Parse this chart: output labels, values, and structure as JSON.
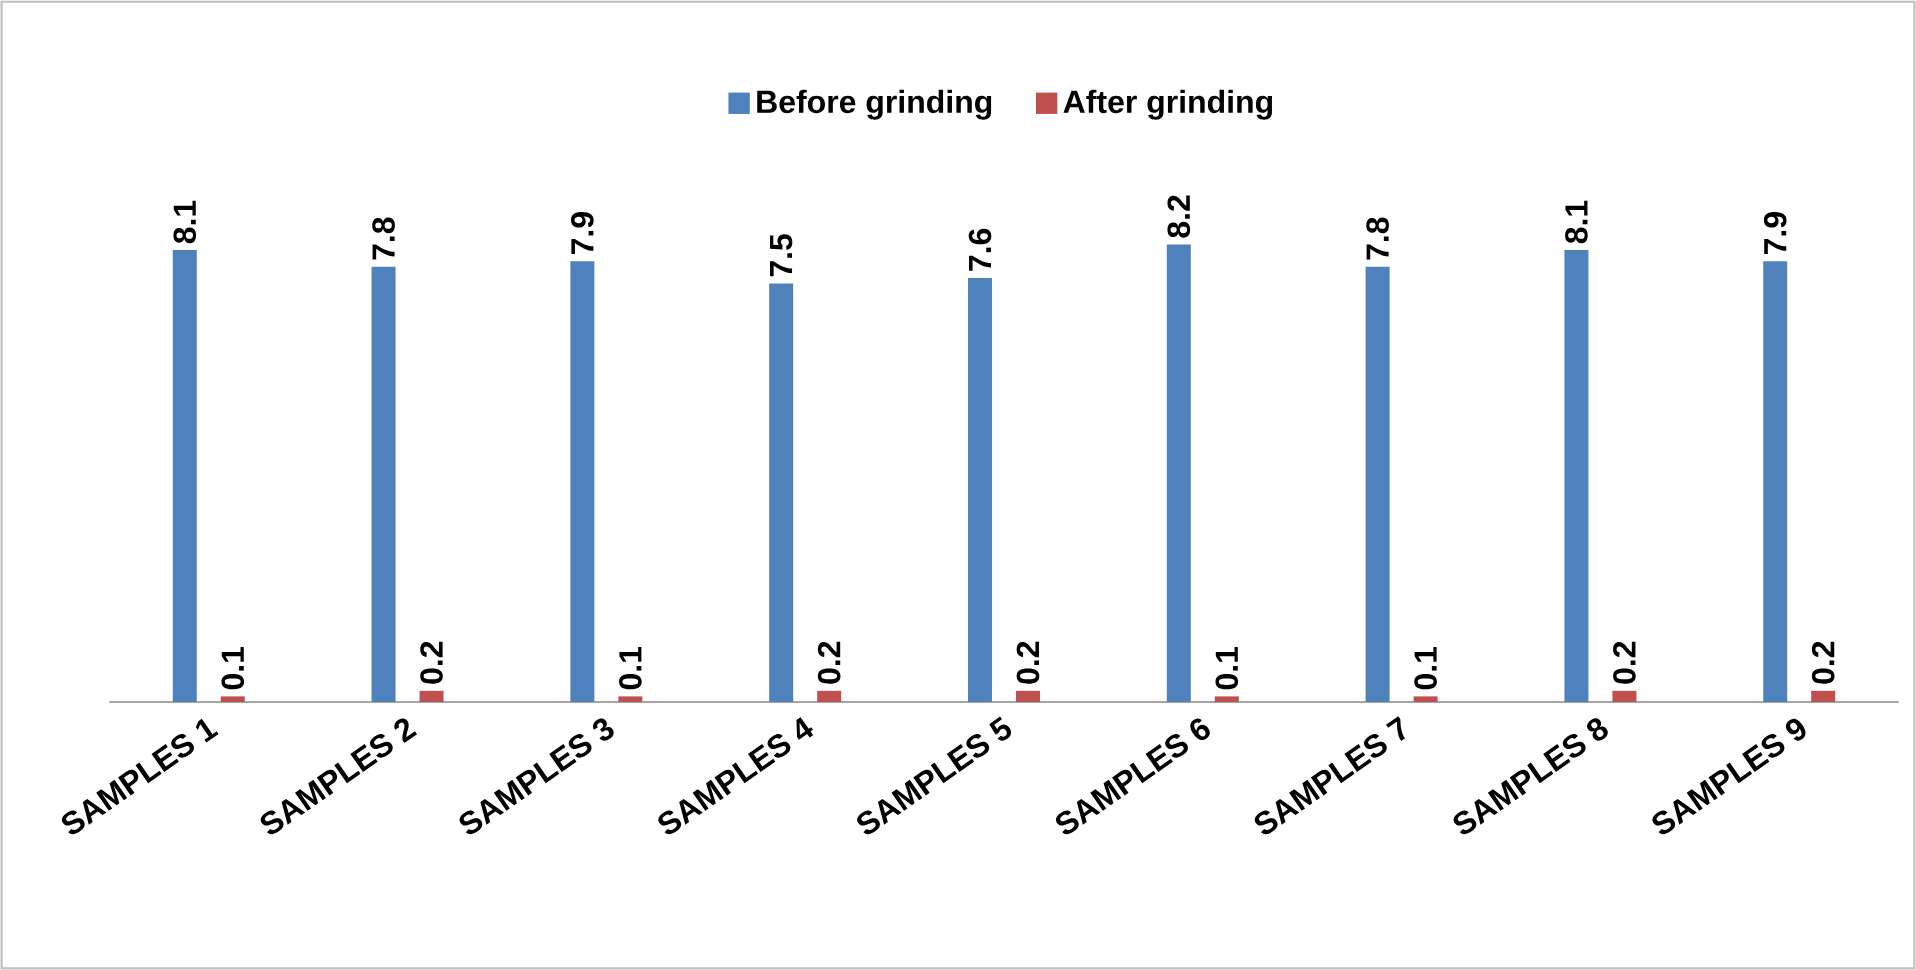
{
  "chart_data": {
    "type": "bar",
    "categories": [
      "SAMPLES 1",
      "SAMPLES 2",
      "SAMPLES 3",
      "SAMPLES 4",
      "SAMPLES 5",
      "SAMPLES 6",
      "SAMPLES 7",
      "SAMPLES 8",
      "SAMPLES 9"
    ],
    "series": [
      {
        "name": "Before grinding",
        "color": "#4f81bd",
        "values": [
          8.1,
          7.8,
          7.9,
          7.5,
          7.6,
          8.2,
          7.8,
          8.1,
          7.9
        ]
      },
      {
        "name": "After grinding",
        "color": "#c0504d",
        "values": [
          0.1,
          0.2,
          0.1,
          0.2,
          0.2,
          0.1,
          0.1,
          0.2,
          0.2
        ]
      }
    ],
    "data_labels": true,
    "legend": "top"
  }
}
